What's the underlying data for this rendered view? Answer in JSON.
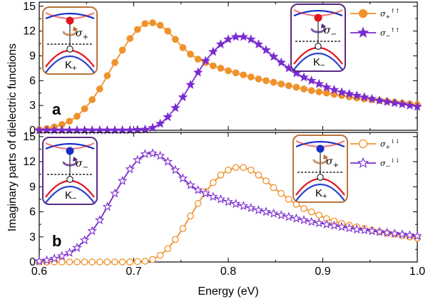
{
  "chart_data": [
    {
      "type": "line",
      "panel_label": "a",
      "xlabel": "Energy (eV)",
      "ylabel": "Imaginary parts of dielectric functions",
      "xlim": [
        0.6,
        1.0
      ],
      "ylim": [
        0,
        15.5
      ],
      "xticks": [
        "0.6",
        "0.7",
        "0.8",
        "0.9",
        "1.0"
      ],
      "yticks": [
        "0",
        "3",
        "6",
        "9",
        "12",
        "15"
      ],
      "series": [
        {
          "name": "σ+↑↑",
          "name_main": "σ",
          "name_sub": "+",
          "name_sup": "↑↑",
          "color": "#F0922B",
          "marker": "filled-circle",
          "x": [
            0.6,
            0.608,
            0.616,
            0.624,
            0.632,
            0.64,
            0.648,
            0.656,
            0.664,
            0.672,
            0.68,
            0.688,
            0.696,
            0.704,
            0.712,
            0.72,
            0.728,
            0.736,
            0.744,
            0.752,
            0.76,
            0.768,
            0.776,
            0.784,
            0.792,
            0.8,
            0.808,
            0.816,
            0.824,
            0.832,
            0.84,
            0.848,
            0.856,
            0.864,
            0.872,
            0.88,
            0.888,
            0.896,
            0.904,
            0.912,
            0.92,
            0.928,
            0.936,
            0.944,
            0.952,
            0.96,
            0.968,
            0.976,
            0.984,
            0.992,
            1.0
          ],
          "y": [
            0.1,
            0.2,
            0.4,
            0.7,
            1.1,
            1.7,
            2.6,
            3.7,
            5.0,
            6.6,
            8.2,
            9.7,
            11.1,
            12.2,
            12.9,
            13.0,
            12.7,
            12.0,
            11.0,
            10.0,
            9.2,
            8.6,
            8.2,
            7.8,
            7.5,
            7.2,
            6.95,
            6.7,
            6.45,
            6.2,
            6.0,
            5.8,
            5.6,
            5.4,
            5.2,
            5.0,
            4.8,
            4.65,
            4.5,
            4.35,
            4.2,
            4.05,
            3.9,
            3.8,
            3.7,
            3.6,
            3.5,
            3.4,
            3.3,
            3.2,
            3.1
          ]
        },
        {
          "name": "σ−↑↑",
          "name_main": "σ",
          "name_sub": "−",
          "name_sup": "↑↑",
          "color": "#7A2BD0",
          "marker": "filled-star",
          "x": [
            0.6,
            0.608,
            0.616,
            0.624,
            0.632,
            0.64,
            0.648,
            0.656,
            0.664,
            0.672,
            0.68,
            0.688,
            0.696,
            0.704,
            0.712,
            0.72,
            0.728,
            0.736,
            0.744,
            0.752,
            0.76,
            0.768,
            0.776,
            0.784,
            0.792,
            0.8,
            0.808,
            0.816,
            0.824,
            0.832,
            0.84,
            0.848,
            0.856,
            0.864,
            0.872,
            0.88,
            0.888,
            0.896,
            0.904,
            0.912,
            0.92,
            0.928,
            0.936,
            0.944,
            0.952,
            0.96,
            0.968,
            0.976,
            0.984,
            0.992,
            1.0
          ],
          "y": [
            0,
            0,
            0,
            0,
            0,
            0,
            0,
            0,
            0,
            0,
            0,
            0,
            0,
            0.05,
            0.1,
            0.3,
            0.8,
            1.6,
            2.7,
            4.0,
            5.5,
            7.0,
            8.4,
            9.5,
            10.4,
            11.0,
            11.3,
            11.3,
            11.0,
            10.4,
            9.7,
            8.9,
            8.2,
            7.5,
            6.9,
            6.4,
            6.0,
            5.6,
            5.2,
            4.9,
            4.6,
            4.4,
            4.2,
            4.0,
            3.8,
            3.6,
            3.45,
            3.3,
            3.15,
            3.0,
            2.85
          ]
        }
      ]
    },
    {
      "type": "line",
      "panel_label": "b",
      "xlabel": "Energy (eV)",
      "ylabel": "Imaginary parts of dielectric functions",
      "xlim": [
        0.6,
        1.0
      ],
      "ylim": [
        0,
        15.5
      ],
      "xticks": [
        "0.6",
        "0.7",
        "0.8",
        "0.9",
        "1.0"
      ],
      "yticks": [
        "0",
        "3",
        "6",
        "9",
        "12",
        "15"
      ],
      "series": [
        {
          "name": "σ+↓↓",
          "name_main": "σ",
          "name_sub": "+",
          "name_sup": "↓↓",
          "color": "#F0922B",
          "marker": "open-circle",
          "x": [
            0.6,
            0.608,
            0.616,
            0.624,
            0.632,
            0.64,
            0.648,
            0.656,
            0.664,
            0.672,
            0.68,
            0.688,
            0.696,
            0.704,
            0.712,
            0.72,
            0.728,
            0.736,
            0.744,
            0.752,
            0.76,
            0.768,
            0.776,
            0.784,
            0.792,
            0.8,
            0.808,
            0.816,
            0.824,
            0.832,
            0.84,
            0.848,
            0.856,
            0.864,
            0.872,
            0.88,
            0.888,
            0.896,
            0.904,
            0.912,
            0.92,
            0.928,
            0.936,
            0.944,
            0.952,
            0.96,
            0.968,
            0.976,
            0.984,
            0.992,
            1.0
          ],
          "y": [
            0,
            0,
            0,
            0,
            0,
            0,
            0,
            0,
            0,
            0,
            0,
            0,
            0,
            0.05,
            0.1,
            0.3,
            0.8,
            1.6,
            2.7,
            4.0,
            5.5,
            7.0,
            8.4,
            9.5,
            10.4,
            11.0,
            11.3,
            11.3,
            11.0,
            10.4,
            9.7,
            8.9,
            8.2,
            7.5,
            6.9,
            6.4,
            6.0,
            5.6,
            5.2,
            4.9,
            4.6,
            4.4,
            4.2,
            4.0,
            3.8,
            3.6,
            3.45,
            3.3,
            3.15,
            3.0,
            2.85
          ]
        },
        {
          "name": "σ−↓↓",
          "name_main": "σ",
          "name_sub": "−",
          "name_sup": "↓↓",
          "color": "#7A2BD0",
          "marker": "open-star",
          "x": [
            0.6,
            0.608,
            0.616,
            0.624,
            0.632,
            0.64,
            0.648,
            0.656,
            0.664,
            0.672,
            0.68,
            0.688,
            0.696,
            0.704,
            0.712,
            0.72,
            0.728,
            0.736,
            0.744,
            0.752,
            0.76,
            0.768,
            0.776,
            0.784,
            0.792,
            0.8,
            0.808,
            0.816,
            0.824,
            0.832,
            0.84,
            0.848,
            0.856,
            0.864,
            0.872,
            0.88,
            0.888,
            0.896,
            0.904,
            0.912,
            0.92,
            0.928,
            0.936,
            0.944,
            0.952,
            0.96,
            0.968,
            0.976,
            0.984,
            0.992,
            1.0
          ],
          "y": [
            0.1,
            0.2,
            0.4,
            0.7,
            1.1,
            1.7,
            2.6,
            3.7,
            5.0,
            6.6,
            8.2,
            9.7,
            11.1,
            12.2,
            12.9,
            13.0,
            12.7,
            12.0,
            11.0,
            10.0,
            9.2,
            8.6,
            8.2,
            7.8,
            7.5,
            7.2,
            6.95,
            6.7,
            6.45,
            6.2,
            6.0,
            5.8,
            5.6,
            5.4,
            5.2,
            5.0,
            4.8,
            4.65,
            4.5,
            4.35,
            4.2,
            4.05,
            3.9,
            3.8,
            3.7,
            3.6,
            3.5,
            3.4,
            3.3,
            3.2,
            3.1
          ]
        }
      ]
    }
  ],
  "insets": {
    "a_left": {
      "valley": "K",
      "valley_sub": "+",
      "sigma": "σ",
      "sigma_sub": "+",
      "frame": "#B8743A",
      "dot": "#E0161E"
    },
    "a_right": {
      "valley": "K",
      "valley_sub": "−",
      "sigma": "σ",
      "sigma_sub": "−",
      "frame": "#5B2A86",
      "dot": "#E0161E"
    },
    "b_left": {
      "valley": "K",
      "valley_sub": "−",
      "sigma": "σ",
      "sigma_sub": "−",
      "frame": "#5B2A86",
      "dot": "#1530C8"
    },
    "b_right": {
      "valley": "K",
      "valley_sub": "+",
      "sigma": "σ",
      "sigma_sub": "+",
      "frame": "#B8743A",
      "dot": "#1530C8"
    }
  },
  "colors": {
    "orange": "#F0922B",
    "purple": "#7A2BD0",
    "band_red": "#E0161E",
    "band_blue": "#1530C8"
  }
}
